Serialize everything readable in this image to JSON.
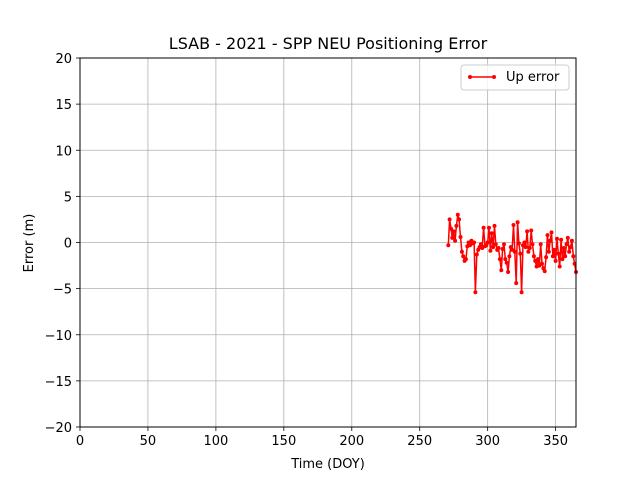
{
  "chart_data": {
    "type": "line",
    "title": "LSAB - 2021 - SPP NEU Positioning Error",
    "xlabel": "Time (DOY)",
    "ylabel": "Error (m)",
    "xlim": [
      0,
      365
    ],
    "ylim": [
      -20,
      20
    ],
    "xticks": [
      0,
      50,
      100,
      150,
      200,
      250,
      300,
      350
    ],
    "yticks": [
      -20,
      -15,
      -10,
      -5,
      0,
      5,
      10,
      15,
      20
    ],
    "grid": true,
    "legend_position": "top-right",
    "series": [
      {
        "name": "Up error",
        "color": "#ff0000",
        "marker": "circle",
        "x": [
          271,
          272,
          273,
          274,
          275,
          276,
          277,
          278,
          279,
          280,
          281,
          282,
          283,
          284,
          285,
          286,
          287,
          288,
          289,
          290,
          291,
          292,
          293,
          294,
          295,
          296,
          297,
          298,
          299,
          300,
          301,
          302,
          303,
          304,
          305,
          306,
          307,
          308,
          309,
          310,
          311,
          312,
          313,
          314,
          315,
          316,
          317,
          318,
          319,
          320,
          321,
          322,
          323,
          324,
          325,
          326,
          327,
          328,
          329,
          330,
          331,
          332,
          333,
          334,
          335,
          336,
          337,
          338,
          339,
          340,
          341,
          342,
          343,
          344,
          345,
          346,
          347,
          348,
          349,
          350,
          351,
          352,
          353,
          354,
          355,
          356,
          357,
          358,
          359,
          360,
          361,
          362,
          363,
          364,
          365
        ],
        "y": [
          -0.3,
          2.5,
          1.5,
          0.5,
          1.2,
          0.2,
          1.8,
          3.0,
          2.5,
          0.6,
          -1.0,
          -1.5,
          -2.0,
          -1.8,
          -0.4,
          0.0,
          -0.3,
          0.2,
          -0.1,
          0.0,
          -5.4,
          -1.3,
          -0.8,
          -0.5,
          -0.2,
          -0.6,
          1.6,
          -0.4,
          -0.3,
          0.0,
          1.6,
          -0.9,
          1.0,
          -0.5,
          1.8,
          -0.2,
          -0.8,
          -0.6,
          -1.8,
          -3.0,
          -0.7,
          -0.2,
          -1.8,
          -2.2,
          -3.2,
          -1.5,
          -0.5,
          -0.8,
          1.9,
          -1.0,
          -4.4,
          2.2,
          -0.1,
          -1.2,
          -5.4,
          -0.3,
          0.0,
          -0.5,
          1.2,
          -1.0,
          -0.6,
          1.3,
          -0.2,
          -1.5,
          -2.0,
          -2.6,
          -1.8,
          -2.5,
          -0.2,
          -2.3,
          -2.8,
          -3.1,
          -1.6,
          0.8,
          -1.0,
          0.2,
          1.1,
          -1.5,
          -0.8,
          -2.0,
          0.4,
          -1.2,
          -2.6,
          0.3,
          -1.8,
          -0.6,
          -1.5,
          -0.2,
          0.5,
          -1.0,
          -0.5,
          0.2,
          -1.5,
          -2.3,
          -3.2
        ]
      }
    ]
  }
}
